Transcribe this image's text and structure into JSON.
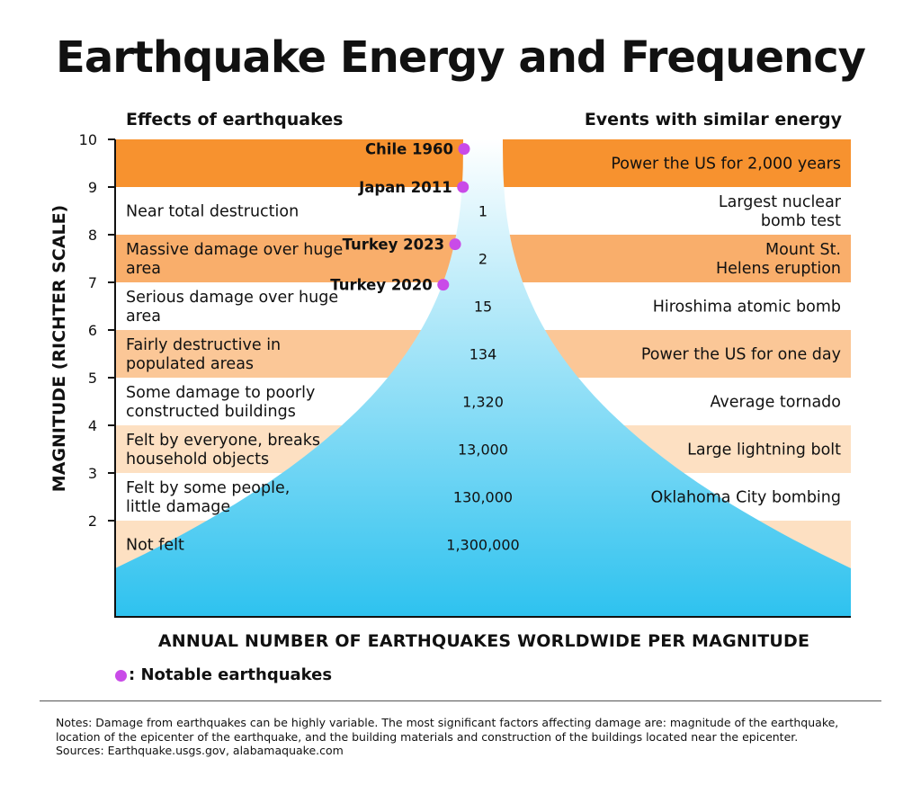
{
  "title": "Earthquake Energy and Frequency",
  "left_header": "Effects of earthquakes",
  "right_header": "Events with similar energy",
  "legend_label": ": Notable earthquakes",
  "notes": [
    "Notes: Damage from earthquakes can be highly variable. The most significant factors affecting damage are: magnitude of the earthquake,",
    "location of the epicenter of the earthquake, and the building materials and construction of the buildings located near the epicenter.",
    "Sources: Earthquake.usgs.gov, alabamaquake.com"
  ],
  "colors": {
    "band_orange": "#f7922f",
    "band_mid": "#f9ae6b",
    "band_light": "#fbc797",
    "band_pale": "#fde0c2",
    "funnel_top": "#ffffff",
    "funnel_bottom": "#2ec2ef",
    "notable_dot": "#c94be8"
  },
  "chart_data": {
    "type": "table",
    "title": "Earthquake Energy and Frequency",
    "xlabel": "ANNUAL NUMBER OF EARTHQUAKES WORLDWIDE PER MAGNITUDE",
    "ylabel": "MAGNITUDE (RICHTER SCALE)",
    "ylim": [
      0,
      10
    ],
    "yticks": [
      2,
      3,
      4,
      5,
      6,
      7,
      8,
      9,
      10
    ],
    "bands": [
      {
        "range": [
          9,
          10
        ],
        "effect": "",
        "annual_count": "",
        "similar_event": "Power the US for 2,000 years",
        "shade": "band_orange"
      },
      {
        "range": [
          8,
          9
        ],
        "effect": "Near total destruction",
        "annual_count": "1",
        "similar_event": "Largest nuclear bomb test",
        "shade": "white"
      },
      {
        "range": [
          7,
          8
        ],
        "effect": "Massive damage over huge area",
        "annual_count": "2",
        "similar_event": "Mount St. Helens eruption",
        "shade": "band_mid"
      },
      {
        "range": [
          6,
          7
        ],
        "effect": "Serious damage over huge area",
        "annual_count": "15",
        "similar_event": "Hiroshima atomic bomb",
        "shade": "white"
      },
      {
        "range": [
          5,
          6
        ],
        "effect": "Fairly destructive in populated areas",
        "annual_count": "134",
        "similar_event": "Power the US for one day",
        "shade": "band_light"
      },
      {
        "range": [
          4,
          5
        ],
        "effect": "Some damage to poorly constructed buildings",
        "annual_count": "1,320",
        "similar_event": "Average tornado",
        "shade": "white"
      },
      {
        "range": [
          3,
          4
        ],
        "effect": "Felt by everyone, breaks household objects",
        "annual_count": "13,000",
        "similar_event": "Large lightning bolt",
        "shade": "band_pale"
      },
      {
        "range": [
          2,
          3
        ],
        "effect": "Felt by some people, little damage",
        "annual_count": "130,000",
        "similar_event": "Oklahoma City bombing",
        "shade": "white"
      },
      {
        "range": [
          1,
          2
        ],
        "effect": "Not felt",
        "annual_count": "1,300,000",
        "similar_event": "",
        "shade": "band_pale"
      }
    ],
    "notable_earthquakes": [
      {
        "label": "Chile 1960",
        "magnitude": 9.8
      },
      {
        "label": "Japan 2011",
        "magnitude": 9.0
      },
      {
        "label": "Turkey 2023",
        "magnitude": 7.8
      },
      {
        "label": "Turkey 2020",
        "magnitude": 6.95
      }
    ]
  }
}
